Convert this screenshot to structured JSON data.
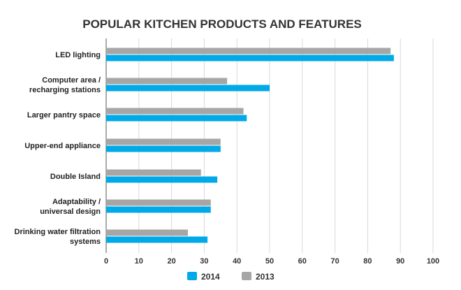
{
  "chart_data": {
    "type": "bar",
    "orientation": "horizontal",
    "title": "POPULAR KITCHEN PRODUCTS AND FEATURES",
    "categories": [
      [
        "LED lighting"
      ],
      [
        "Computer area /",
        "recharging stations"
      ],
      [
        "Larger pantry space"
      ],
      [
        "Upper-end appliance"
      ],
      [
        "Double Island"
      ],
      [
        "Adaptability /",
        "universal design"
      ],
      [
        "Drinking water filtration",
        "systems"
      ]
    ],
    "series": [
      {
        "name": "2013",
        "color": "#a6a6a6",
        "values": [
          87,
          37,
          42,
          35,
          29,
          32,
          25
        ]
      },
      {
        "name": "2014",
        "color": "#00a9e8",
        "values": [
          88,
          50,
          43,
          35,
          34,
          32,
          31
        ]
      }
    ],
    "xlim": [
      0,
      100
    ],
    "xticks": [
      "0",
      "10",
      "20",
      "30",
      "40",
      "50",
      "60",
      "70",
      "80",
      "90",
      "100"
    ],
    "grid": true,
    "legend": {
      "placement": "bottom",
      "order": [
        "2014",
        "2013"
      ]
    }
  }
}
